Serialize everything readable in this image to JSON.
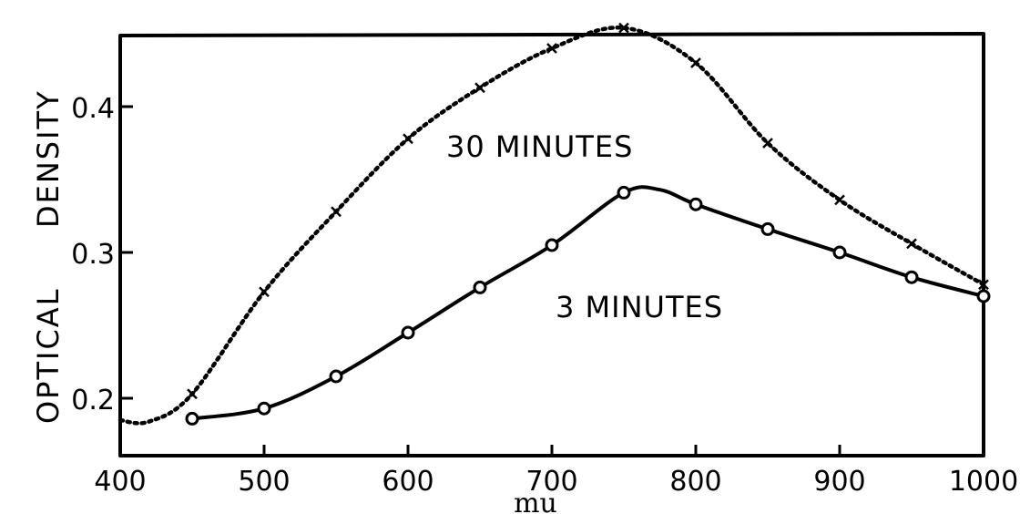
{
  "chart_data": {
    "type": "line",
    "title": "",
    "xlabel": "mu",
    "ylabel": "OPTICAL DENSITY",
    "xlim": [
      400,
      1000
    ],
    "ylim": [
      0.16,
      0.455
    ],
    "x_ticks": [
      400,
      500,
      600,
      700,
      800,
      900,
      1000
    ],
    "x_tick_labels": [
      "400",
      "500",
      "600",
      "700",
      "800",
      "900",
      "1000"
    ],
    "y_ticks": [
      0.2,
      0.3,
      0.4
    ],
    "y_tick_labels": [
      "0.2",
      "0.3",
      "0.4"
    ],
    "grid": false,
    "legend": "inline labels",
    "x": [
      450,
      500,
      550,
      600,
      650,
      700,
      750,
      800,
      850,
      900,
      950,
      1000
    ],
    "series": [
      {
        "name": "30 MINUTES",
        "style": "dotted",
        "marker": "x",
        "values": [
          0.203,
          0.273,
          0.328,
          0.378,
          0.413,
          0.44,
          0.454,
          0.43,
          0.375,
          0.336,
          0.306,
          0.278
        ],
        "curve_start": {
          "x": 400,
          "y": 0.185
        }
      },
      {
        "name": "3 MINUTES",
        "style": "solid",
        "marker": "o",
        "values": [
          0.186,
          0.193,
          0.215,
          0.245,
          0.276,
          0.305,
          0.341,
          0.333,
          0.316,
          0.3,
          0.283,
          0.27
        ]
      }
    ],
    "annotations": [
      {
        "text": "30 MINUTES",
        "x": 640,
        "y": 0.375
      },
      {
        "text": "3 MINUTES",
        "x": 700,
        "y": 0.285
      }
    ]
  },
  "labels": {
    "ylabel_word1": "OPTICAL",
    "ylabel_word2": "DENSITY",
    "xlabel": "mu",
    "series_30": "30 MINUTES",
    "series_3": "3 MINUTES"
  }
}
